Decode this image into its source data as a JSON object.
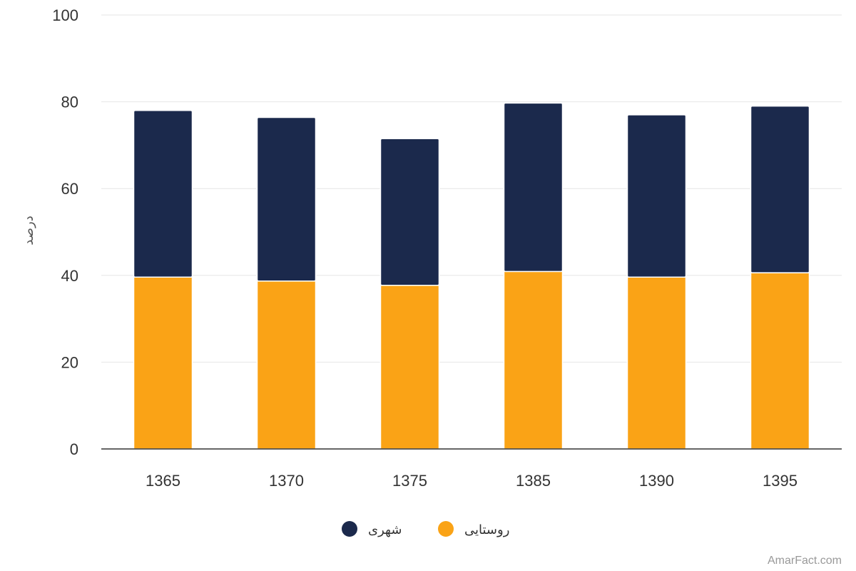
{
  "chart_data": {
    "type": "bar",
    "stacked": true,
    "categories": [
      "1365",
      "1370",
      "1375",
      "1385",
      "1390",
      "1395"
    ],
    "series": [
      {
        "name": "روستایی",
        "color": "#faa316",
        "values": [
          39.6,
          38.7,
          37.7,
          40.9,
          39.6,
          40.6
        ]
      },
      {
        "name": "شهری",
        "color": "#1b294c",
        "values": [
          38.4,
          37.7,
          33.8,
          38.8,
          37.4,
          38.4
        ]
      }
    ],
    "xlabel": "",
    "ylabel": "درصد",
    "ylim": [
      0,
      100
    ],
    "yticks": [
      "0",
      "20",
      "40",
      "60",
      "80",
      "100"
    ],
    "grid": true,
    "legend_position": "bottom",
    "legend_order": [
      "شهری",
      "روستایی"
    ]
  },
  "credit": "AmarFact.com"
}
